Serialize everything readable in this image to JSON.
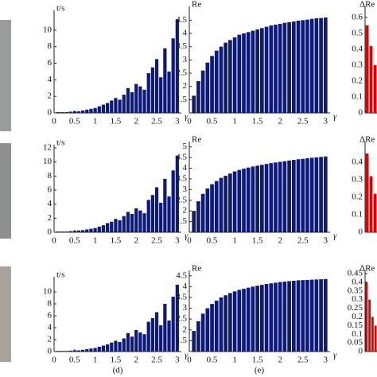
{
  "captions": [
    "(d)",
    "(e)"
  ],
  "chart_data": [
    {
      "type": "bar",
      "ylabel": "t/s",
      "xlabel": "γ",
      "color": "#0d1a7a",
      "xlim": [
        0,
        3.1
      ],
      "ylim": [
        0,
        12
      ],
      "xticks": [
        0,
        0.5,
        1,
        1.5,
        2,
        2.5,
        3
      ],
      "yticks": [
        0,
        2,
        4,
        6,
        8,
        10
      ],
      "x": [
        0.1,
        0.2,
        0.3,
        0.4,
        0.5,
        0.6,
        0.7,
        0.8,
        0.9,
        1,
        1.1,
        1.2,
        1.3,
        1.4,
        1.5,
        1.6,
        1.7,
        1.8,
        1.9,
        2,
        2.1,
        2.2,
        2.3,
        2.4,
        2.5,
        2.6,
        2.7,
        2.8,
        2.9,
        3
      ],
      "values": [
        0.1,
        0.1,
        0.1,
        0.15,
        0.2,
        0.2,
        0.3,
        0.4,
        0.5,
        0.6,
        0.8,
        1,
        1.2,
        1.5,
        1.8,
        1.6,
        2.2,
        3,
        2.5,
        3.5,
        3.2,
        2.8,
        4.8,
        5.5,
        6.5,
        4.3,
        7.8,
        5,
        9,
        11.3
      ]
    },
    {
      "type": "bar",
      "ylabel": "Re",
      "xlabel": "γ",
      "color": "#0d1a7a",
      "xlim": [
        0,
        3.1
      ],
      "ylim": [
        1,
        4.9
      ],
      "xticks": [
        0,
        0.5,
        1,
        1.5,
        2,
        2.5,
        3
      ],
      "yticks": [
        1.5,
        2,
        2.5,
        3,
        3.5,
        4,
        4.5
      ],
      "x": [
        0.1,
        0.2,
        0.3,
        0.4,
        0.5,
        0.6,
        0.7,
        0.8,
        0.9,
        1,
        1.1,
        1.2,
        1.3,
        1.4,
        1.5,
        1.6,
        1.7,
        1.8,
        1.9,
        2,
        2.1,
        2.2,
        2.3,
        2.4,
        2.5,
        2.6,
        2.7,
        2.8,
        2.9,
        3
      ],
      "values": [
        1.65,
        2.2,
        2.6,
        2.9,
        3.15,
        3.35,
        3.5,
        3.65,
        3.75,
        3.85,
        3.95,
        4,
        4.05,
        4.1,
        4.15,
        4.2,
        4.25,
        4.3,
        4.33,
        4.36,
        4.4,
        4.42,
        4.45,
        4.48,
        4.5,
        4.52,
        4.55,
        4.57,
        4.58,
        4.6
      ]
    },
    {
      "type": "bar",
      "ylabel": "ΔRe",
      "color": "#e00000",
      "ylim": [
        0,
        0.65
      ],
      "yticks": [
        0,
        0.1,
        0.2,
        0.3,
        0.4,
        0.5,
        0.6
      ],
      "categories": [
        null,
        null,
        null
      ],
      "values": [
        0.55,
        0.42,
        0.3
      ]
    },
    {
      "type": "bar",
      "ylabel": "t/s",
      "xlabel": "γ",
      "color": "#0d1a7a",
      "xlim": [
        0,
        3.1
      ],
      "ylim": [
        0,
        12
      ],
      "xticks": [
        0,
        0.5,
        1,
        1.5,
        2,
        2.5,
        3
      ],
      "yticks": [
        0,
        2,
        4,
        6,
        8,
        10,
        12
      ],
      "x": [
        0.1,
        0.2,
        0.3,
        0.4,
        0.5,
        0.6,
        0.7,
        0.8,
        0.9,
        1,
        1.1,
        1.2,
        1.3,
        1.4,
        1.5,
        1.6,
        1.7,
        1.8,
        1.9,
        2,
        2.1,
        2.2,
        2.3,
        2.4,
        2.5,
        2.6,
        2.7,
        2.8,
        2.9,
        3
      ],
      "values": [
        0.1,
        0.1,
        0.1,
        0.15,
        0.2,
        0.25,
        0.3,
        0.4,
        0.5,
        0.6,
        0.8,
        1,
        1.3,
        1.5,
        1.9,
        1.7,
        2.3,
        2.9,
        2.6,
        3.4,
        3.1,
        2.7,
        4.6,
        5.3,
        6.4,
        4.2,
        7.6,
        5.1,
        8.8,
        10.9
      ]
    },
    {
      "type": "bar",
      "ylabel": "Re",
      "xlabel": "γ",
      "color": "#0d1a7a",
      "xlim": [
        0,
        3.1
      ],
      "ylim": [
        1,
        5.1
      ],
      "xticks": [
        0,
        0.5,
        1,
        1.5,
        2,
        2.5,
        3
      ],
      "yticks": [
        1.5,
        2,
        2.5,
        3,
        3.5,
        4,
        4.5,
        5
      ],
      "x": [
        0.1,
        0.2,
        0.3,
        0.4,
        0.5,
        0.6,
        0.7,
        0.8,
        0.9,
        1,
        1.1,
        1.2,
        1.3,
        1.4,
        1.5,
        1.6,
        1.7,
        1.8,
        1.9,
        2,
        2.1,
        2.2,
        2.3,
        2.4,
        2.5,
        2.6,
        2.7,
        2.8,
        2.9,
        3
      ],
      "values": [
        2,
        2.45,
        2.8,
        3.05,
        3.25,
        3.4,
        3.55,
        3.65,
        3.75,
        3.85,
        3.92,
        3.98,
        4.03,
        4.08,
        4.12,
        4.16,
        4.2,
        4.24,
        4.27,
        4.3,
        4.33,
        4.36,
        4.39,
        4.42,
        4.44,
        4.47,
        4.49,
        4.51,
        4.53,
        4.55
      ]
    },
    {
      "type": "bar",
      "ylabel": "ΔRe",
      "color": "#e00000",
      "ylim": [
        0,
        0.5
      ],
      "yticks": [
        0,
        0.1,
        0.2,
        0.3,
        0.4
      ],
      "categories": [
        null,
        null,
        null
      ],
      "values": [
        0.45,
        0.32,
        0.22
      ]
    },
    {
      "type": "bar",
      "ylabel": "t/s",
      "xlabel": "γ",
      "color": "#0d1a7a",
      "xlim": [
        0,
        3.1
      ],
      "ylim": [
        0,
        12
      ],
      "xticks": [
        0,
        0.5,
        1,
        1.5,
        2,
        2.5,
        3
      ],
      "yticks": [
        0,
        2,
        4,
        6,
        8,
        10
      ],
      "x": [
        0.1,
        0.2,
        0.3,
        0.4,
        0.5,
        0.6,
        0.7,
        0.8,
        0.9,
        1,
        1.1,
        1.2,
        1.3,
        1.4,
        1.5,
        1.6,
        1.7,
        1.8,
        1.9,
        2,
        2.1,
        2.2,
        2.3,
        2.4,
        2.5,
        2.6,
        2.7,
        2.8,
        2.9,
        3
      ],
      "values": [
        0.1,
        0.1,
        0.1,
        0.15,
        0.2,
        0.2,
        0.3,
        0.4,
        0.5,
        0.6,
        0.8,
        1,
        1.2,
        1.5,
        1.8,
        1.6,
        2.2,
        3.1,
        2.5,
        3.6,
        3.2,
        2.9,
        5,
        5.6,
        6.6,
        4.4,
        8,
        5.2,
        9.2,
        11.2
      ]
    },
    {
      "type": "bar",
      "ylabel": "Re",
      "xlabel": "γ",
      "color": "#0d1a7a",
      "xlim": [
        0,
        3.1
      ],
      "ylim": [
        1,
        4.6
      ],
      "xticks": [
        0,
        0.5,
        1,
        1.5,
        2,
        2.5,
        3
      ],
      "yticks": [
        1.5,
        2,
        2.5,
        3,
        3.5,
        4,
        4.5
      ],
      "x": [
        0.1,
        0.2,
        0.3,
        0.4,
        0.5,
        0.6,
        0.7,
        0.8,
        0.9,
        1,
        1.1,
        1.2,
        1.3,
        1.4,
        1.5,
        1.6,
        1.7,
        1.8,
        1.9,
        2,
        2.1,
        2.2,
        2.3,
        2.4,
        2.5,
        2.6,
        2.7,
        2.8,
        2.9,
        3
      ],
      "values": [
        1.95,
        2.4,
        2.75,
        3,
        3.2,
        3.35,
        3.5,
        3.6,
        3.7,
        3.78,
        3.85,
        3.9,
        3.95,
        4,
        4.04,
        4.08,
        4.12,
        4.15,
        4.18,
        4.21,
        4.23,
        4.25,
        4.27,
        4.29,
        4.3,
        4.31,
        4.32,
        4.33,
        4.34,
        4.35
      ]
    },
    {
      "type": "bar",
      "ylabel": "ΔRe",
      "color": "#e00000",
      "ylim": [
        0,
        0.45
      ],
      "yticks": [
        0,
        0.05,
        0.1,
        0.15,
        0.2,
        0.25,
        0.3,
        0.35,
        0.4,
        0.45
      ],
      "categories": [
        null,
        null,
        null,
        null
      ],
      "values": [
        0.4,
        0.3,
        0.2,
        0.15
      ]
    }
  ]
}
